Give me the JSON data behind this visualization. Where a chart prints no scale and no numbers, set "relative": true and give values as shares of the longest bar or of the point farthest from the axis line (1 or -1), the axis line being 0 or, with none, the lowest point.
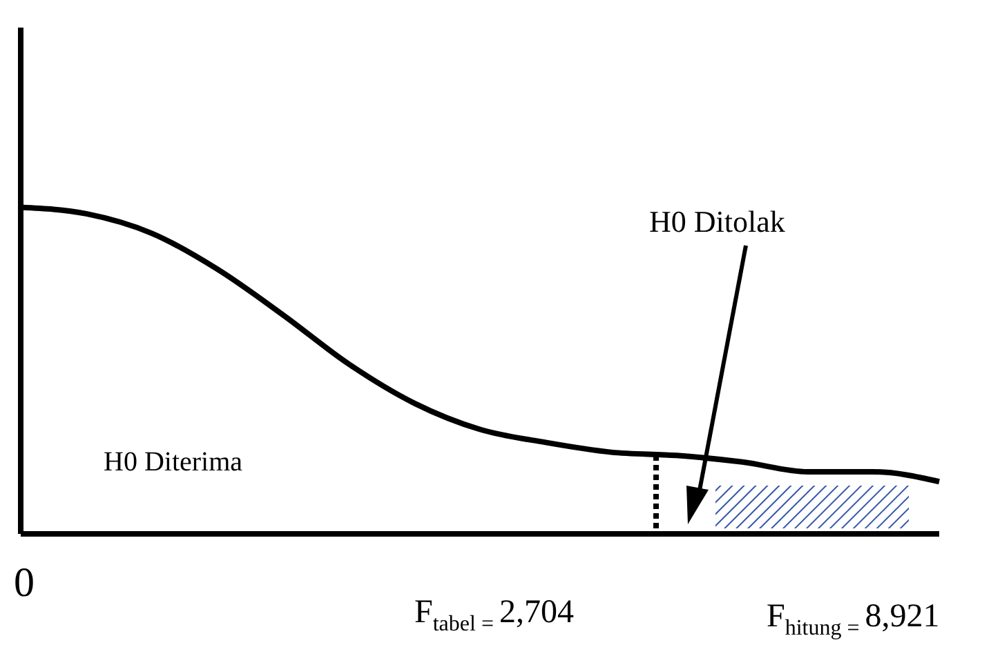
{
  "chart_data": {
    "type": "line",
    "relative": true,
    "categories": [
      null,
      null,
      null,
      null,
      null,
      null,
      null,
      null,
      null,
      null,
      null,
      null,
      null,
      null,
      null
    ],
    "series": [
      {
        "color": "#000000",
        "values": [
          1,
          0.98,
          0.92,
          0.81,
          0.67,
          0.52,
          0.4,
          0.32,
          0.28,
          0.25,
          0.24,
          0.22,
          0.19,
          0.19,
          0.16
        ]
      }
    ],
    "annotations": [
      "0",
      "H0 Diterima",
      "H0 Ditolak",
      "F$_{tabel = }$2,704",
      "F$_{hitung = }$8,921"
    ]
  }
}
